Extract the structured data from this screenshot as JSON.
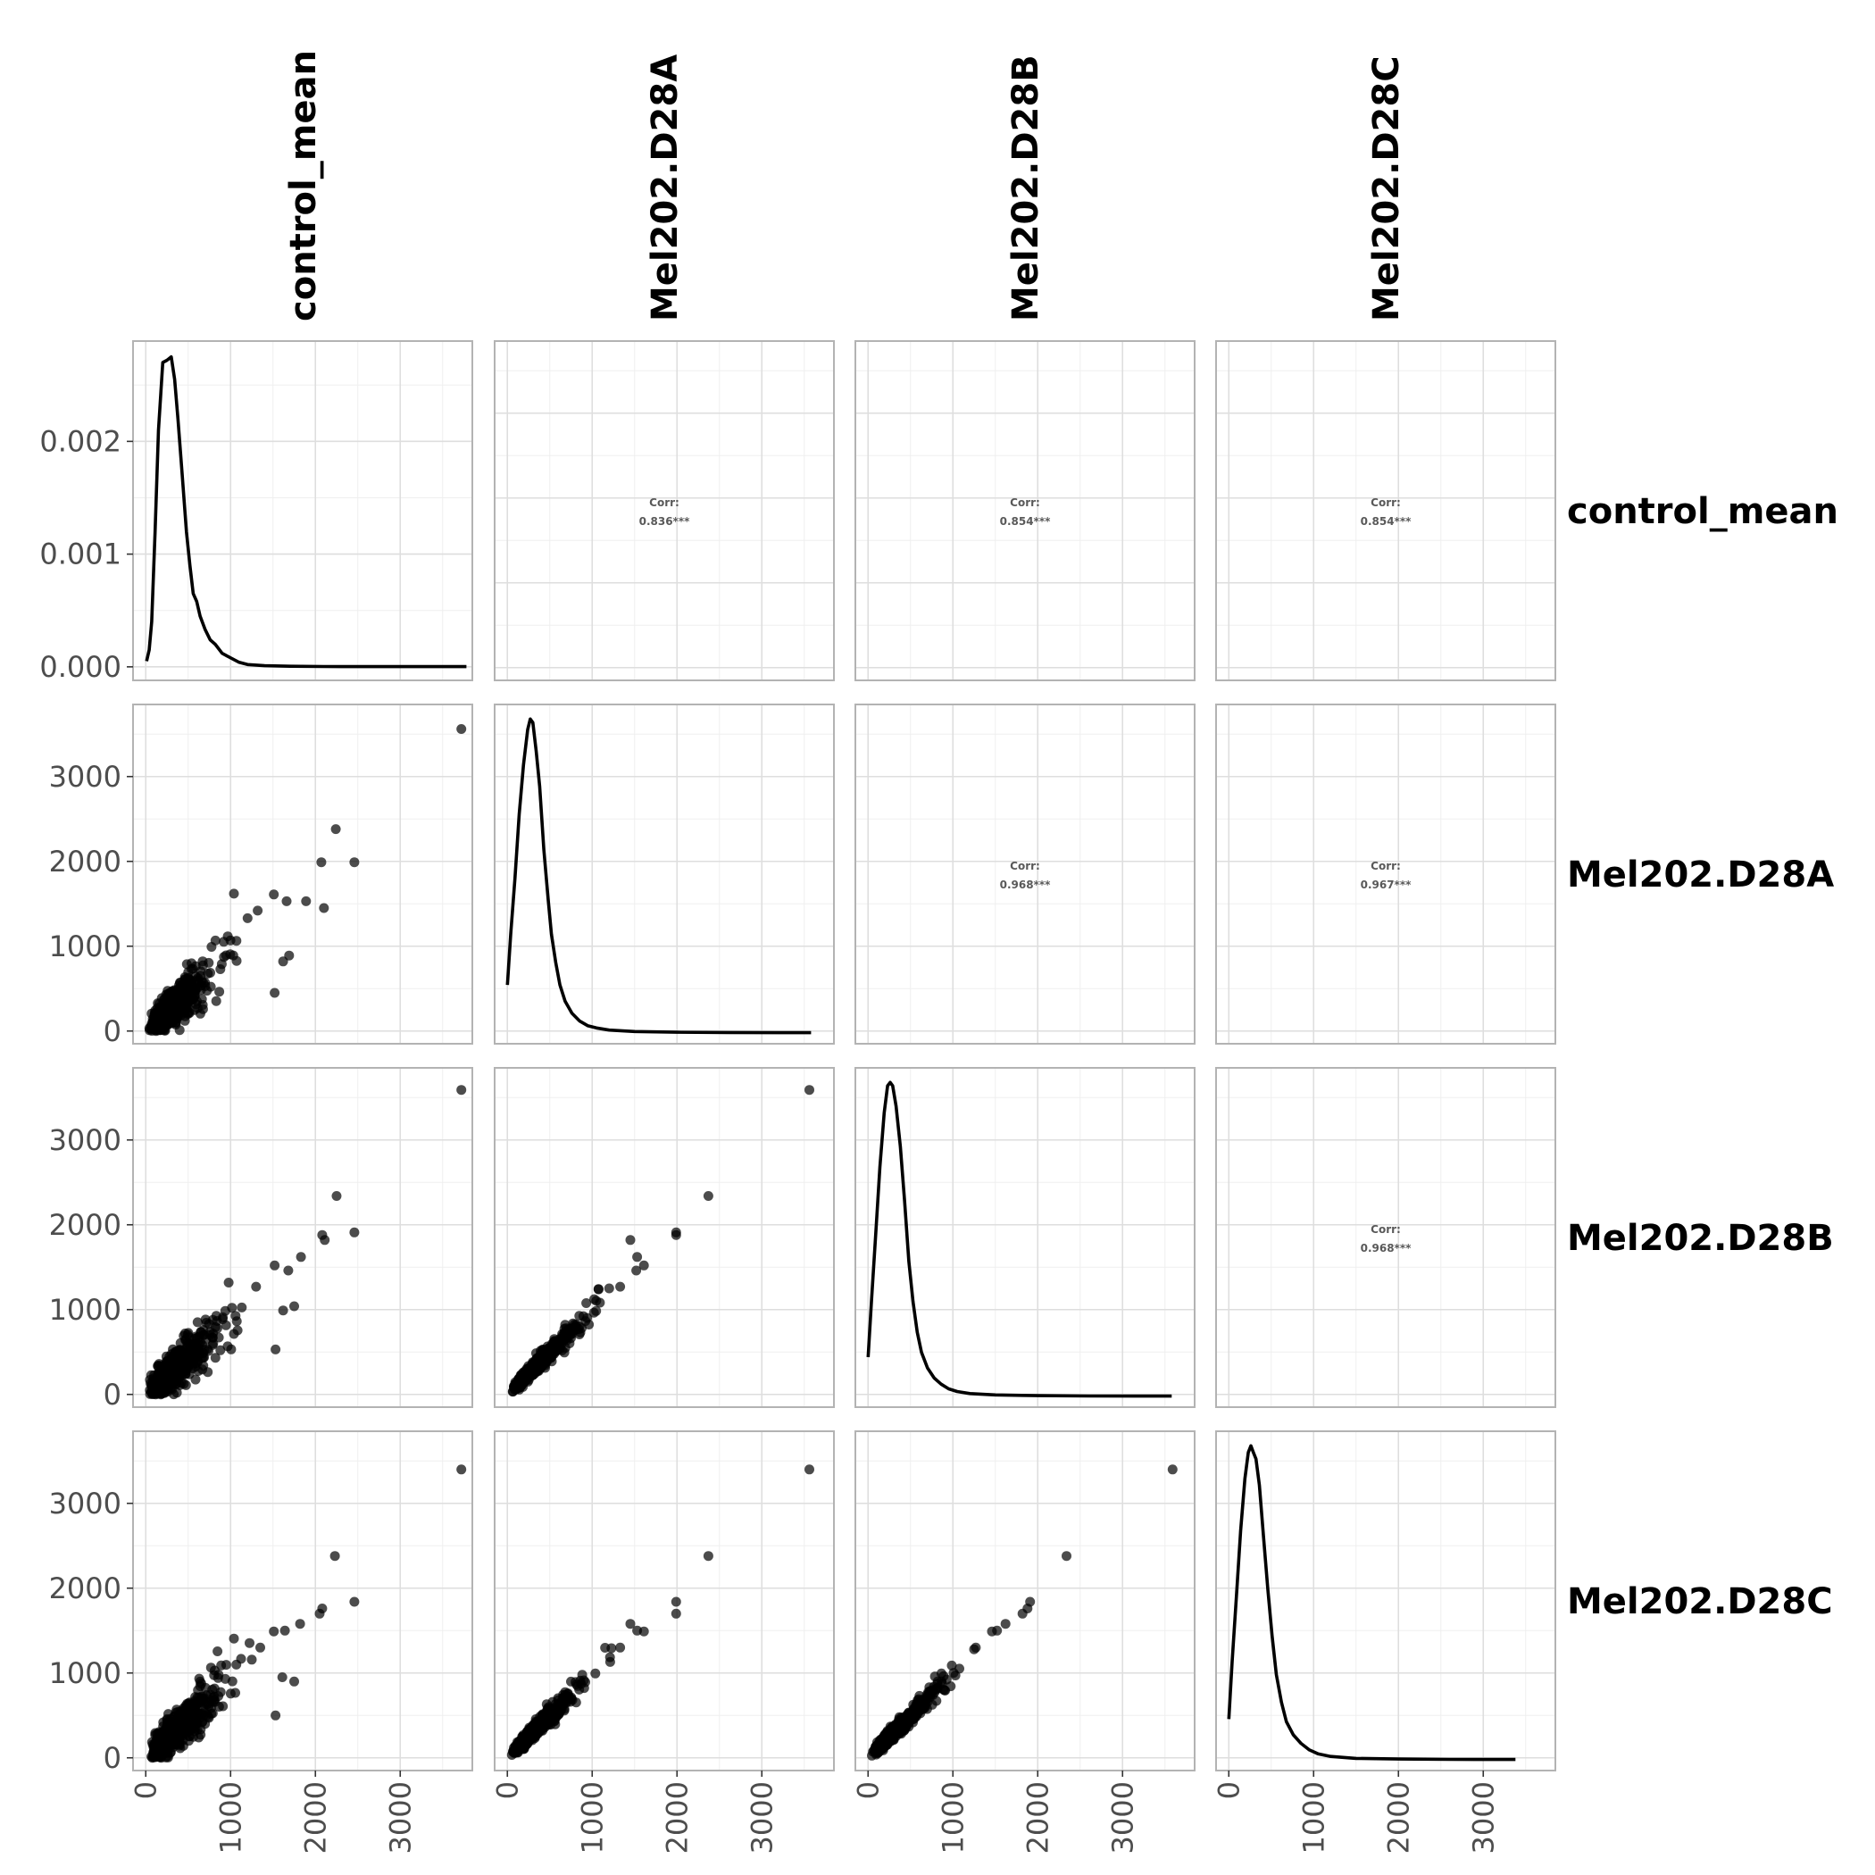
{
  "chart_data": {
    "type": "pairs",
    "variables": [
      "control_mean",
      "Mel202.D28A",
      "Mel202.D28B",
      "Mel202.D28C"
    ],
    "axis_range": [
      -150,
      3850
    ],
    "x_ticks": [
      0,
      1000,
      2000,
      3000
    ],
    "y_ticks": [
      0,
      1000,
      2000,
      3000
    ],
    "density_y_axis": {
      "range": [
        -0.00012,
        0.00289
      ],
      "ticks": [
        0.0,
        0.001,
        0.002
      ],
      "tick_labels": [
        "0.000",
        "0.001",
        "0.002"
      ]
    },
    "correlations": [
      {
        "row": 0,
        "col": 1,
        "label": "Corr:",
        "value": "0.836***"
      },
      {
        "row": 0,
        "col": 2,
        "label": "Corr:",
        "value": "0.854***"
      },
      {
        "row": 0,
        "col": 3,
        "label": "Corr:",
        "value": "0.854***"
      },
      {
        "row": 1,
        "col": 2,
        "label": "Corr:",
        "value": "0.968***"
      },
      {
        "row": 1,
        "col": 3,
        "label": "Corr:",
        "value": "0.967***"
      },
      {
        "row": 2,
        "col": 3,
        "label": "Corr:",
        "value": "0.968***"
      }
    ],
    "densities": [
      {
        "name": "control_mean",
        "x": [
          10,
          40,
          70,
          110,
          150,
          200,
          250,
          300,
          340,
          380,
          430,
          480,
          520,
          560,
          600,
          640,
          700,
          760,
          820,
          900,
          1000,
          1100,
          1200,
          1400,
          1700,
          2100,
          2600,
          3200,
          3780
        ],
        "y": [
          5e-05,
          0.00015,
          0.0004,
          0.0012,
          0.0021,
          0.0027,
          0.00272,
          0.00275,
          0.00255,
          0.0022,
          0.0017,
          0.0012,
          0.0009,
          0.00065,
          0.00058,
          0.00045,
          0.00033,
          0.00024,
          0.0002,
          0.00012,
          8e-05,
          4e-05,
          2e-05,
          1e-05,
          5e-06,
          3e-06,
          2e-06,
          2e-06,
          2e-06
        ]
      },
      {
        "name": "Mel202.D28A",
        "x": [
          0,
          40,
          90,
          140,
          190,
          240,
          270,
          300,
          340,
          380,
          430,
          480,
          520,
          570,
          620,
          680,
          760,
          850,
          950,
          1050,
          1200,
          1500,
          2000,
          2600,
          3200,
          3580
        ],
        "y": [
          0.00068,
          0.0014,
          0.0022,
          0.0031,
          0.0038,
          0.0043,
          0.00445,
          0.0044,
          0.004,
          0.0035,
          0.0026,
          0.0019,
          0.0014,
          0.001,
          0.00068,
          0.00045,
          0.00028,
          0.00017,
          0.0001,
          7e-05,
          4e-05,
          2e-05,
          1e-05,
          5e-06,
          3e-06,
          3e-06
        ]
      },
      {
        "name": "Mel202.D28B",
        "x": [
          0,
          40,
          90,
          140,
          190,
          230,
          260,
          290,
          330,
          380,
          430,
          480,
          530,
          580,
          630,
          700,
          780,
          860,
          950,
          1050,
          1200,
          1500,
          2000,
          2600,
          3200,
          3580
        ],
        "y": [
          0.00058,
          0.0014,
          0.0024,
          0.0034,
          0.0042,
          0.0046,
          0.00465,
          0.0046,
          0.0043,
          0.0037,
          0.0029,
          0.002,
          0.0014,
          0.00095,
          0.00065,
          0.00042,
          0.00027,
          0.00018,
          0.00011,
          7e-05,
          4e-05,
          2e-05,
          1e-05,
          5e-06,
          3e-06,
          3e-06
        ]
      },
      {
        "name": "Mel202.D28C",
        "x": [
          0,
          40,
          90,
          140,
          190,
          230,
          260,
          290,
          320,
          360,
          410,
          460,
          510,
          560,
          620,
          680,
          760,
          850,
          950,
          1050,
          1200,
          1500,
          2000,
          2600,
          3200,
          3380
        ],
        "y": [
          0.00062,
          0.0015,
          0.0025,
          0.0035,
          0.0043,
          0.0047,
          0.0048,
          0.0047,
          0.0046,
          0.0042,
          0.0034,
          0.0026,
          0.0019,
          0.0013,
          0.00088,
          0.00058,
          0.00038,
          0.00025,
          0.00015,
          9e-05,
          5e-05,
          2e-05,
          1e-05,
          5e-06,
          3e-06,
          3e-06
        ]
      }
    ],
    "outliers": [
      {
        "row": 1,
        "col": 0,
        "points": [
          [
            3720,
            3560
          ],
          [
            2240,
            2380
          ],
          [
            2460,
            1990
          ],
          [
            2070,
            1990
          ],
          [
            2100,
            1450
          ],
          [
            1890,
            1530
          ],
          [
            1660,
            1530
          ],
          [
            1510,
            1610
          ],
          [
            1690,
            890
          ],
          [
            1620,
            820
          ],
          [
            1520,
            450
          ],
          [
            1320,
            1420
          ],
          [
            1200,
            1330
          ]
        ]
      },
      {
        "row": 2,
        "col": 0,
        "points": [
          [
            3720,
            3590
          ],
          [
            2250,
            2340
          ],
          [
            2460,
            1910
          ],
          [
            2080,
            1880
          ],
          [
            2110,
            1820
          ],
          [
            1830,
            1620
          ],
          [
            1680,
            1460
          ],
          [
            1520,
            1520
          ],
          [
            1750,
            1040
          ],
          [
            1620,
            990
          ],
          [
            1530,
            530
          ],
          [
            1300,
            1270
          ]
        ]
      },
      {
        "row": 3,
        "col": 0,
        "points": [
          [
            3720,
            3400
          ],
          [
            2230,
            2380
          ],
          [
            2460,
            1840
          ],
          [
            2080,
            1760
          ],
          [
            2050,
            1700
          ],
          [
            1820,
            1580
          ],
          [
            1640,
            1500
          ],
          [
            1510,
            1490
          ],
          [
            1750,
            900
          ],
          [
            1610,
            950
          ],
          [
            1530,
            500
          ],
          [
            1350,
            1300
          ]
        ]
      },
      {
        "row": 2,
        "col": 1,
        "points": [
          [
            3560,
            3590
          ],
          [
            2370,
            2340
          ],
          [
            1990,
            1910
          ],
          [
            1990,
            1880
          ],
          [
            1450,
            1820
          ],
          [
            1530,
            1620
          ],
          [
            1610,
            1520
          ],
          [
            1520,
            1460
          ],
          [
            1330,
            1270
          ],
          [
            1200,
            1250
          ]
        ]
      },
      {
        "row": 3,
        "col": 1,
        "points": [
          [
            3560,
            3400
          ],
          [
            2370,
            2380
          ],
          [
            1990,
            1840
          ],
          [
            1990,
            1700
          ],
          [
            1450,
            1580
          ],
          [
            1530,
            1500
          ],
          [
            1610,
            1490
          ],
          [
            1330,
            1300
          ]
        ]
      },
      {
        "row": 3,
        "col": 2,
        "points": [
          [
            3590,
            3400
          ],
          [
            2340,
            2380
          ],
          [
            1910,
            1840
          ],
          [
            1880,
            1760
          ],
          [
            1820,
            1700
          ],
          [
            1620,
            1580
          ],
          [
            1520,
            1500
          ],
          [
            1460,
            1490
          ],
          [
            1270,
            1300
          ],
          [
            1250,
            1280
          ]
        ]
      }
    ]
  }
}
